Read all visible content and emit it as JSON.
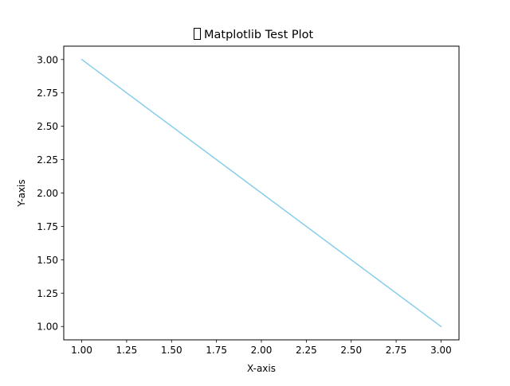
{
  "chart_data": {
    "type": "line",
    "title": "Matplotlib Test Plot",
    "title_prefix_glyph": "missing-glyph-box",
    "xlabel": "X-axis",
    "ylabel": "Y-axis",
    "xlim": [
      0.9,
      3.1
    ],
    "ylim": [
      0.9,
      3.1
    ],
    "grid": false,
    "legend": "none",
    "x_ticks": [
      1.0,
      1.25,
      1.5,
      1.75,
      2.0,
      2.25,
      2.5,
      2.75,
      3.0
    ],
    "x_tick_labels": [
      "1.00",
      "1.25",
      "1.50",
      "1.75",
      "2.00",
      "2.25",
      "2.50",
      "2.75",
      "3.00"
    ],
    "y_ticks": [
      1.0,
      1.25,
      1.5,
      1.75,
      2.0,
      2.25,
      2.5,
      2.75,
      3.0
    ],
    "y_tick_labels": [
      "1.00",
      "1.25",
      "1.50",
      "1.75",
      "2.00",
      "2.25",
      "2.50",
      "2.75",
      "3.00"
    ],
    "series": [
      {
        "x": [
          1,
          2,
          3
        ],
        "y": [
          3,
          2,
          1
        ],
        "color": "#87ceeb"
      }
    ]
  }
}
